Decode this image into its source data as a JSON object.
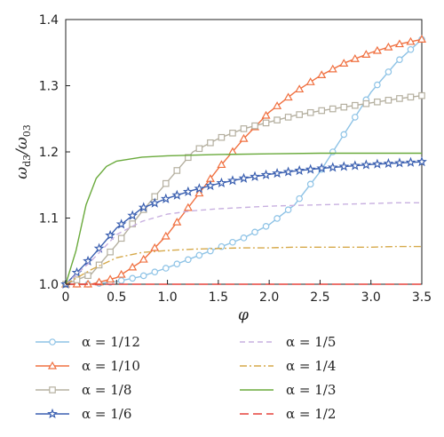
{
  "chart_data": {
    "type": "line",
    "xlabel": "φ",
    "ylabel_main": "ω",
    "ylabel_sub1": "d3",
    "ylabel_sep": "/ω",
    "ylabel_sub2": "03",
    "xlim": [
      0,
      3.5
    ],
    "ylim": [
      1.0,
      1.4
    ],
    "xticks": [
      "0",
      "0.5",
      "1.0",
      "1.5",
      "2.0",
      "2.5",
      "3.0",
      "3.5"
    ],
    "yticks": [
      "1.0",
      "1.1",
      "1.2",
      "1.3",
      "1.4"
    ],
    "legend_position": "bottom",
    "series": [
      {
        "name": "α = 1/12",
        "color": "#8ec3e6",
        "marker": "circle",
        "dash": "",
        "x": [
          0,
          0.25,
          0.5,
          0.75,
          1.0,
          1.25,
          1.5,
          1.75,
          2.0,
          2.25,
          2.5,
          2.75,
          3.0,
          3.25,
          3.5
        ],
        "y": [
          1.0,
          1.0,
          1.004,
          1.012,
          1.025,
          1.04,
          1.055,
          1.07,
          1.09,
          1.12,
          1.17,
          1.23,
          1.29,
          1.335,
          1.37
        ]
      },
      {
        "name": "α = 1/10",
        "color": "#f07040",
        "marker": "triangle",
        "dash": "",
        "x": [
          0,
          0.25,
          0.5,
          0.75,
          1.0,
          1.25,
          1.5,
          1.75,
          2.0,
          2.25,
          2.5,
          2.75,
          3.0,
          3.25,
          3.5
        ],
        "y": [
          1.0,
          1.0,
          1.01,
          1.035,
          1.075,
          1.125,
          1.175,
          1.22,
          1.26,
          1.29,
          1.315,
          1.335,
          1.35,
          1.362,
          1.37
        ]
      },
      {
        "name": "α = 1/8",
        "color": "#b5b0a0",
        "marker": "square",
        "dash": "",
        "x": [
          0,
          0.25,
          0.5,
          0.75,
          1.0,
          1.25,
          1.5,
          1.75,
          2.0,
          2.25,
          2.5,
          2.75,
          3.0,
          3.25,
          3.5
        ],
        "y": [
          1.0,
          1.015,
          1.06,
          1.11,
          1.155,
          1.2,
          1.22,
          1.235,
          1.245,
          1.255,
          1.262,
          1.268,
          1.274,
          1.28,
          1.285
        ]
      },
      {
        "name": "α = 1/6",
        "color": "#3a5fb0",
        "marker": "star",
        "dash": "",
        "x": [
          0,
          0.25,
          0.5,
          0.75,
          1.0,
          1.25,
          1.5,
          1.75,
          2.0,
          2.25,
          2.5,
          2.75,
          3.0,
          3.25,
          3.5
        ],
        "y": [
          1.0,
          1.04,
          1.085,
          1.115,
          1.13,
          1.142,
          1.152,
          1.16,
          1.166,
          1.171,
          1.175,
          1.178,
          1.181,
          1.183,
          1.185
        ]
      },
      {
        "name": "α = 1/5",
        "color": "#c8b0e0",
        "marker": "none",
        "dash": "6,4",
        "x": [
          0,
          0.25,
          0.5,
          0.75,
          1.0,
          1.25,
          1.5,
          1.75,
          2.0,
          2.25,
          2.5,
          2.75,
          3.0,
          3.25,
          3.5
        ],
        "y": [
          1.0,
          1.035,
          1.075,
          1.095,
          1.106,
          1.111,
          1.114,
          1.116,
          1.118,
          1.119,
          1.12,
          1.121,
          1.122,
          1.123,
          1.123
        ]
      },
      {
        "name": "α = 1/4",
        "color": "#d6a94a",
        "marker": "none",
        "dash": "8,3,2,3",
        "x": [
          0,
          0.25,
          0.5,
          0.75,
          1.0,
          1.25,
          1.5,
          1.75,
          2.0,
          2.25,
          2.5,
          2.75,
          3.0,
          3.25,
          3.5
        ],
        "y": [
          1.0,
          1.022,
          1.04,
          1.048,
          1.051,
          1.053,
          1.054,
          1.055,
          1.055,
          1.056,
          1.056,
          1.056,
          1.056,
          1.057,
          1.057
        ]
      },
      {
        "name": "α = 1/3",
        "color": "#6aaa3c",
        "marker": "none",
        "dash": "",
        "x": [
          0,
          0.1,
          0.2,
          0.3,
          0.4,
          0.5,
          0.75,
          1.0,
          1.5,
          2.0,
          2.5,
          3.0,
          3.5
        ],
        "y": [
          1.0,
          1.05,
          1.12,
          1.16,
          1.178,
          1.186,
          1.192,
          1.194,
          1.196,
          1.197,
          1.198,
          1.198,
          1.198
        ]
      },
      {
        "name": "α = 1/2",
        "color": "#e5413a",
        "marker": "none",
        "dash": "10,5",
        "x": [
          0,
          3.5
        ],
        "y": [
          1.0,
          1.0
        ]
      }
    ]
  }
}
